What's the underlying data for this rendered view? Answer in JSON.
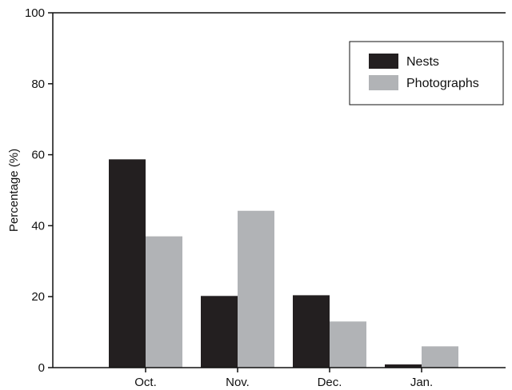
{
  "chart_data": {
    "type": "bar",
    "categories": [
      "Oct.",
      "Nov.",
      "Dec.",
      "Jan."
    ],
    "series": [
      {
        "name": "Nests",
        "values": [
          58.7,
          20.2,
          20.4,
          0.9
        ],
        "color": "#231f20"
      },
      {
        "name": "Photographs",
        "values": [
          37.0,
          44.2,
          13.0,
          6.0
        ],
        "color": "#b1b3b6"
      }
    ],
    "xlabel": "",
    "ylabel": "Percentage (%)",
    "ylim": [
      0,
      100
    ],
    "yticks": [
      "0",
      "20",
      "40",
      "60",
      "80",
      "100"
    ],
    "grid": false,
    "legend_position": "top-right"
  }
}
